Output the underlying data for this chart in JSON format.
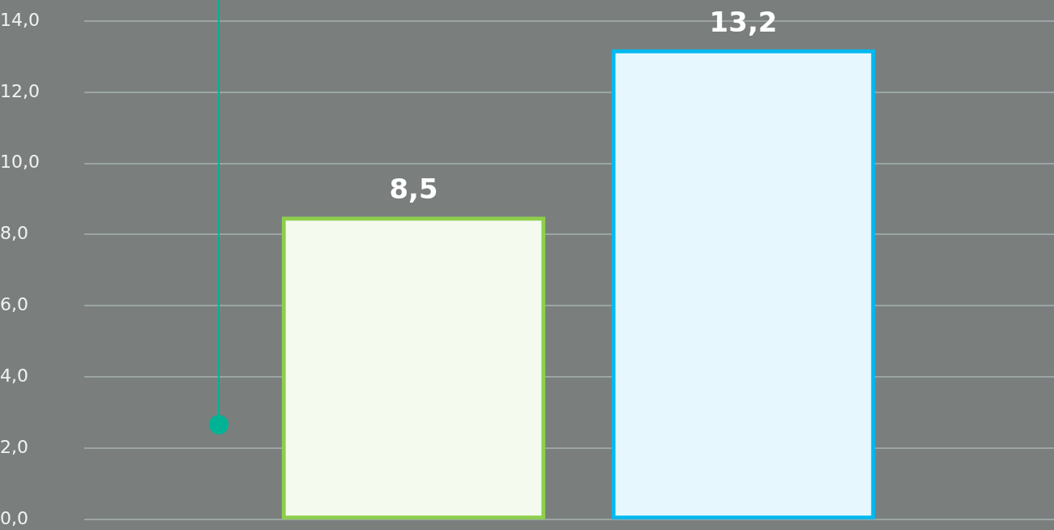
{
  "chart_data": {
    "type": "bar",
    "categories": [
      null,
      null
    ],
    "values": [
      8.5,
      13.2
    ],
    "colors": [
      "#8dcf4a",
      "#00b9ef"
    ],
    "value_labels": [
      "8,5",
      "13,2"
    ],
    "ylim": [
      0,
      14
    ],
    "yticks": [
      {
        "value": 0,
        "label": "0,0"
      },
      {
        "value": 2,
        "label": "2,0"
      },
      {
        "value": 4,
        "label": "4,0"
      },
      {
        "value": 6,
        "label": "6,0"
      },
      {
        "value": 8,
        "label": "8,0"
      },
      {
        "value": 10,
        "label": "10,0"
      },
      {
        "value": 12,
        "label": "12,0"
      },
      {
        "value": 14,
        "label": "14,0"
      }
    ],
    "grid": "y",
    "tick_labels": "y"
  }
}
